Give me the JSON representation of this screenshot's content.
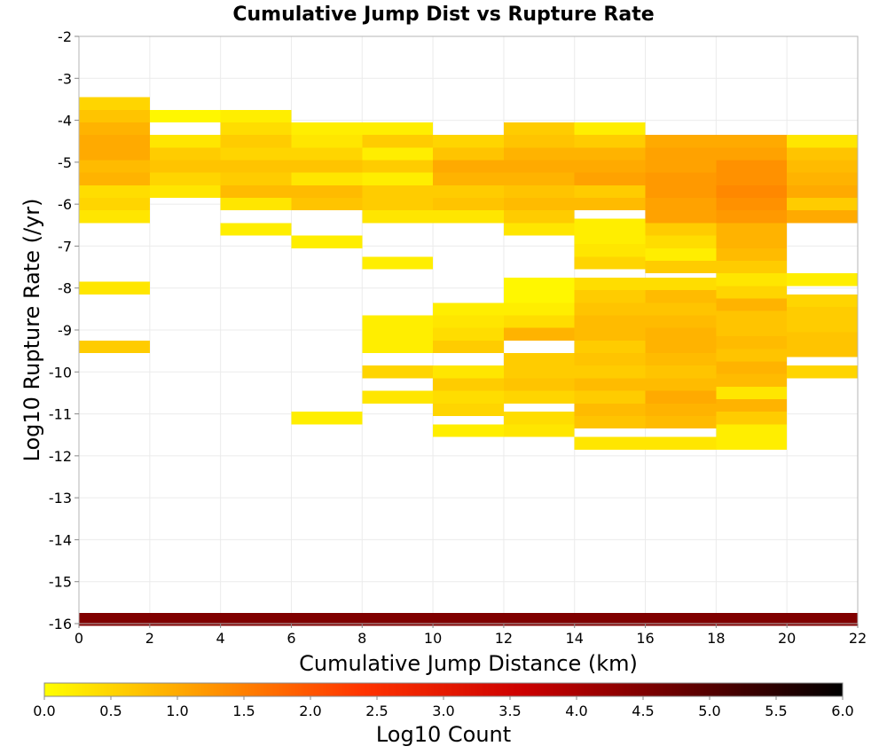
{
  "chart_data": {
    "type": "heatmap",
    "title": "Cumulative Jump Dist vs Rupture Rate",
    "xlabel": "Cumulative Jump Distance (km)",
    "ylabel": "Log10 Rupture Rate (/yr)",
    "xlim": [
      0,
      22
    ],
    "ylim": [
      -16,
      -2
    ],
    "x_ticks": [
      "0",
      "2",
      "4",
      "6",
      "8",
      "10",
      "12",
      "14",
      "16",
      "18",
      "20",
      "22"
    ],
    "y_ticks": [
      "-2",
      "-3",
      "-4",
      "-5",
      "-6",
      "-7",
      "-8",
      "-9",
      "-10",
      "-11",
      "-12",
      "-13",
      "-14",
      "-15",
      "-16"
    ],
    "grid": true,
    "colorbar": {
      "label": "Log10 Count",
      "range": [
        0,
        6
      ],
      "ticks": [
        "0.0",
        "0.5",
        "1.0",
        "1.5",
        "2.0",
        "2.5",
        "3.0",
        "3.5",
        "4.0",
        "4.5",
        "5.0",
        "5.5",
        "6.0"
      ],
      "stops": [
        "#ffff00",
        "#ff9900",
        "#ff3300",
        "#cc0000",
        "#660000",
        "#000000"
      ]
    },
    "bin_width_x": 2,
    "bin_height_y": 0.3,
    "columns": [
      {
        "x": 0,
        "cells": [
          [
            -3.6,
            0.5
          ],
          [
            -3.9,
            0.7
          ],
          [
            -4.2,
            0.9
          ],
          [
            -4.5,
            1.0
          ],
          [
            -4.8,
            1.0
          ],
          [
            -5.1,
            0.8
          ],
          [
            -5.4,
            0.9
          ],
          [
            -5.7,
            0.4
          ],
          [
            -6.0,
            0.5
          ],
          [
            -6.3,
            0.3
          ],
          [
            -8.0,
            0.3
          ],
          [
            -9.4,
            0.6
          ]
        ]
      },
      {
        "x": 2,
        "cells": [
          [
            -3.9,
            0.1
          ],
          [
            -4.5,
            0.3
          ],
          [
            -4.8,
            0.6
          ],
          [
            -5.1,
            0.7
          ],
          [
            -5.4,
            0.5
          ],
          [
            -5.7,
            0.3
          ]
        ]
      },
      {
        "x": 4,
        "cells": [
          [
            -3.9,
            0.2
          ],
          [
            -4.2,
            0.4
          ],
          [
            -4.5,
            0.6
          ],
          [
            -4.8,
            0.5
          ],
          [
            -5.1,
            0.7
          ],
          [
            -5.4,
            0.6
          ],
          [
            -5.7,
            0.8
          ],
          [
            -6.0,
            0.3
          ],
          [
            -6.6,
            0.2
          ]
        ]
      },
      {
        "x": 6,
        "cells": [
          [
            -4.2,
            0.2
          ],
          [
            -4.5,
            0.3
          ],
          [
            -4.8,
            0.5
          ],
          [
            -5.1,
            0.7
          ],
          [
            -5.4,
            0.3
          ],
          [
            -5.7,
            0.8
          ],
          [
            -6.0,
            0.7
          ],
          [
            -6.9,
            0.2
          ],
          [
            -11.1,
            0.2
          ]
        ]
      },
      {
        "x": 8,
        "cells": [
          [
            -4.2,
            0.2
          ],
          [
            -4.5,
            0.6
          ],
          [
            -4.8,
            0.2
          ],
          [
            -5.1,
            0.6
          ],
          [
            -5.4,
            0.2
          ],
          [
            -5.7,
            0.6
          ],
          [
            -6.0,
            0.6
          ],
          [
            -6.3,
            0.3
          ],
          [
            -7.4,
            0.2
          ],
          [
            -8.8,
            0.2
          ],
          [
            -9.1,
            0.2
          ],
          [
            -9.4,
            0.2
          ],
          [
            -10.0,
            0.5
          ],
          [
            -10.6,
            0.3
          ]
        ]
      },
      {
        "x": 10,
        "cells": [
          [
            -4.5,
            0.5
          ],
          [
            -4.8,
            0.7
          ],
          [
            -5.1,
            1.0
          ],
          [
            -5.4,
            0.9
          ],
          [
            -5.7,
            0.6
          ],
          [
            -6.0,
            0.7
          ],
          [
            -6.3,
            0.3
          ],
          [
            -8.5,
            0.2
          ],
          [
            -8.8,
            0.3
          ],
          [
            -9.1,
            0.4
          ],
          [
            -9.4,
            0.6
          ],
          [
            -10.0,
            0.3
          ],
          [
            -10.3,
            0.6
          ],
          [
            -10.6,
            0.4
          ],
          [
            -10.9,
            0.5
          ],
          [
            -11.4,
            0.2
          ]
        ]
      },
      {
        "x": 12,
        "cells": [
          [
            -4.2,
            0.6
          ],
          [
            -4.5,
            0.7
          ],
          [
            -4.8,
            0.9
          ],
          [
            -5.1,
            1.0
          ],
          [
            -5.4,
            0.9
          ],
          [
            -5.7,
            0.7
          ],
          [
            -6.0,
            0.8
          ],
          [
            -6.3,
            0.6
          ],
          [
            -6.6,
            0.3
          ],
          [
            -7.9,
            0.1
          ],
          [
            -8.2,
            0.1
          ],
          [
            -8.5,
            0.2
          ],
          [
            -8.8,
            0.4
          ],
          [
            -9.1,
            0.9
          ],
          [
            -9.7,
            0.6
          ],
          [
            -10.0,
            0.6
          ],
          [
            -10.3,
            0.7
          ],
          [
            -10.6,
            0.5
          ],
          [
            -11.1,
            0.4
          ],
          [
            -11.4,
            0.3
          ]
        ]
      },
      {
        "x": 14,
        "cells": [
          [
            -4.2,
            0.2
          ],
          [
            -4.5,
            0.6
          ],
          [
            -4.8,
            0.9
          ],
          [
            -5.1,
            1.0
          ],
          [
            -5.4,
            1.1
          ],
          [
            -5.7,
            0.6
          ],
          [
            -6.0,
            0.8
          ],
          [
            -6.5,
            0.2
          ],
          [
            -6.8,
            0.2
          ],
          [
            -7.1,
            0.3
          ],
          [
            -7.4,
            0.5
          ],
          [
            -7.9,
            0.4
          ],
          [
            -8.2,
            0.6
          ],
          [
            -8.5,
            0.7
          ],
          [
            -8.8,
            0.8
          ],
          [
            -9.1,
            0.8
          ],
          [
            -9.4,
            0.6
          ],
          [
            -9.7,
            0.7
          ],
          [
            -10.0,
            0.6
          ],
          [
            -10.3,
            0.8
          ],
          [
            -10.6,
            0.6
          ],
          [
            -10.9,
            0.8
          ],
          [
            -11.2,
            0.7
          ],
          [
            -11.7,
            0.3
          ]
        ]
      },
      {
        "x": 16,
        "cells": [
          [
            -4.5,
            1.0
          ],
          [
            -4.8,
            1.1
          ],
          [
            -5.1,
            1.1
          ],
          [
            -5.4,
            1.2
          ],
          [
            -5.7,
            1.2
          ],
          [
            -6.0,
            1.1
          ],
          [
            -6.3,
            1.1
          ],
          [
            -6.6,
            0.6
          ],
          [
            -6.9,
            0.4
          ],
          [
            -7.2,
            0.2
          ],
          [
            -7.5,
            0.6
          ],
          [
            -7.9,
            0.4
          ],
          [
            -8.2,
            0.8
          ],
          [
            -8.5,
            0.7
          ],
          [
            -8.8,
            0.8
          ],
          [
            -9.1,
            0.9
          ],
          [
            -9.4,
            0.9
          ],
          [
            -9.7,
            0.8
          ],
          [
            -10.0,
            0.7
          ],
          [
            -10.3,
            0.8
          ],
          [
            -10.6,
            1.0
          ],
          [
            -10.9,
            0.9
          ],
          [
            -11.2,
            0.8
          ],
          [
            -11.7,
            0.3
          ]
        ]
      },
      {
        "x": 18,
        "cells": [
          [
            -4.5,
            1.0
          ],
          [
            -4.8,
            1.1
          ],
          [
            -5.1,
            1.3
          ],
          [
            -5.4,
            1.3
          ],
          [
            -5.7,
            1.4
          ],
          [
            -6.0,
            1.3
          ],
          [
            -6.3,
            1.2
          ],
          [
            -6.6,
            0.9
          ],
          [
            -6.9,
            0.9
          ],
          [
            -7.2,
            0.8
          ],
          [
            -7.5,
            0.6
          ],
          [
            -7.8,
            0.3
          ],
          [
            -8.1,
            0.5
          ],
          [
            -8.4,
            0.9
          ],
          [
            -8.7,
            0.7
          ],
          [
            -9.0,
            0.7
          ],
          [
            -9.3,
            0.8
          ],
          [
            -9.6,
            0.7
          ],
          [
            -9.9,
            0.9
          ],
          [
            -10.2,
            0.8
          ],
          [
            -10.5,
            0.3
          ],
          [
            -10.8,
            0.9
          ],
          [
            -11.1,
            0.6
          ],
          [
            -11.4,
            0.2
          ],
          [
            -11.7,
            0.2
          ]
        ]
      },
      {
        "x": 20,
        "cells": [
          [
            -4.5,
            0.3
          ],
          [
            -4.8,
            0.7
          ],
          [
            -5.1,
            0.8
          ],
          [
            -5.4,
            0.9
          ],
          [
            -5.7,
            1.0
          ],
          [
            -6.0,
            0.6
          ],
          [
            -6.3,
            1.0
          ],
          [
            -7.8,
            0.2
          ],
          [
            -8.3,
            0.5
          ],
          [
            -8.6,
            0.6
          ],
          [
            -8.9,
            0.6
          ],
          [
            -9.2,
            0.7
          ],
          [
            -9.5,
            0.7
          ],
          [
            -10.0,
            0.5
          ]
        ]
      },
      {
        "x": 0,
        "span_to": 22,
        "cells": [
          [
            -15.9,
            4.5
          ]
        ]
      }
    ]
  }
}
